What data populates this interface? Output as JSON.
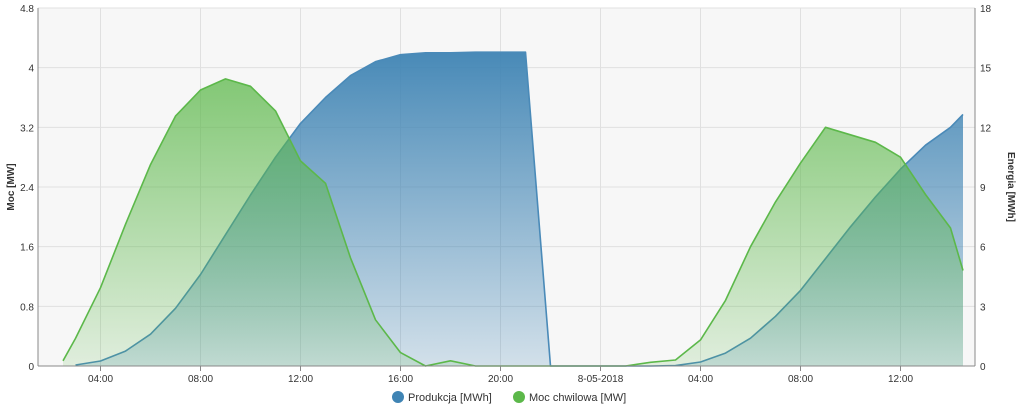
{
  "chart_data": {
    "type": "area",
    "x_unit": "hour",
    "x_start": 2.5,
    "x_end": 38.5,
    "x_ticks": [
      {
        "x": 4,
        "label": "04:00"
      },
      {
        "x": 8,
        "label": "08:00"
      },
      {
        "x": 12,
        "label": "12:00"
      },
      {
        "x": 16,
        "label": "16:00"
      },
      {
        "x": 20,
        "label": "20:00"
      },
      {
        "x": 24,
        "label": "8-05-2018"
      },
      {
        "x": 28,
        "label": "04:00"
      },
      {
        "x": 32,
        "label": "08:00"
      },
      {
        "x": 36,
        "label": "12:00"
      }
    ],
    "y_left": {
      "label": "Moc [MW]",
      "min": 0,
      "max": 4.8,
      "ticks": [
        0,
        0.8,
        1.6,
        2.4,
        3.2,
        4,
        4.8
      ]
    },
    "y_right": {
      "label": "Energia [MWh]",
      "min": 0,
      "max": 18,
      "ticks": [
        0,
        3,
        6,
        9,
        12,
        15,
        18
      ]
    },
    "grid": true,
    "legend_position": "bottom-center",
    "series": [
      {
        "name": "Produkcja [MWh]",
        "axis": "right",
        "color": "#4a8ab8",
        "points": [
          [
            3,
            0.05
          ],
          [
            4,
            0.25
          ],
          [
            5,
            0.75
          ],
          [
            6,
            1.6
          ],
          [
            7,
            2.9
          ],
          [
            8,
            4.6
          ],
          [
            9,
            6.6
          ],
          [
            10,
            8.6
          ],
          [
            11,
            10.5
          ],
          [
            12,
            12.2
          ],
          [
            13,
            13.5
          ],
          [
            14,
            14.6
          ],
          [
            15,
            15.3
          ],
          [
            16,
            15.65
          ],
          [
            17,
            15.75
          ],
          [
            18,
            15.75
          ],
          [
            19,
            15.78
          ],
          [
            20,
            15.78
          ],
          [
            21,
            15.78
          ],
          [
            22,
            0
          ],
          [
            23,
            0
          ],
          [
            24,
            0
          ],
          [
            25,
            0
          ],
          [
            26,
            0
          ],
          [
            27,
            0.02
          ],
          [
            28,
            0.2
          ],
          [
            29,
            0.65
          ],
          [
            30,
            1.4
          ],
          [
            31,
            2.5
          ],
          [
            32,
            3.8
          ],
          [
            33,
            5.4
          ],
          [
            34,
            7.0
          ],
          [
            35,
            8.5
          ],
          [
            36,
            9.9
          ],
          [
            37,
            11.1
          ],
          [
            38,
            12.0
          ],
          [
            38.5,
            12.65
          ]
        ]
      },
      {
        "name": "Moc chwilowa [MW]",
        "axis": "left",
        "color": "#5cb84a",
        "points": [
          [
            2.5,
            0.07
          ],
          [
            3,
            0.37
          ],
          [
            4,
            1.05
          ],
          [
            5,
            1.9
          ],
          [
            6,
            2.7
          ],
          [
            7,
            3.35
          ],
          [
            8,
            3.7
          ],
          [
            9,
            3.85
          ],
          [
            10,
            3.75
          ],
          [
            11,
            3.42
          ],
          [
            12,
            2.75
          ],
          [
            13,
            2.45
          ],
          [
            14,
            1.45
          ],
          [
            15,
            0.62
          ],
          [
            16,
            0.18
          ],
          [
            17,
            0.0
          ],
          [
            18,
            0.07
          ],
          [
            19,
            0.0
          ],
          [
            20,
            0.0
          ],
          [
            21,
            0.0
          ],
          [
            22,
            0.0
          ],
          [
            23,
            0.0
          ],
          [
            24,
            0.0
          ],
          [
            25,
            0.0
          ],
          [
            26,
            0.05
          ],
          [
            27,
            0.08
          ],
          [
            28,
            0.35
          ],
          [
            29,
            0.88
          ],
          [
            30,
            1.6
          ],
          [
            31,
            2.2
          ],
          [
            32,
            2.72
          ],
          [
            33,
            3.2
          ],
          [
            34,
            3.1
          ],
          [
            35,
            3.0
          ],
          [
            36,
            2.8
          ],
          [
            37,
            2.3
          ],
          [
            38,
            1.85
          ],
          [
            38.5,
            1.28
          ]
        ]
      }
    ]
  }
}
